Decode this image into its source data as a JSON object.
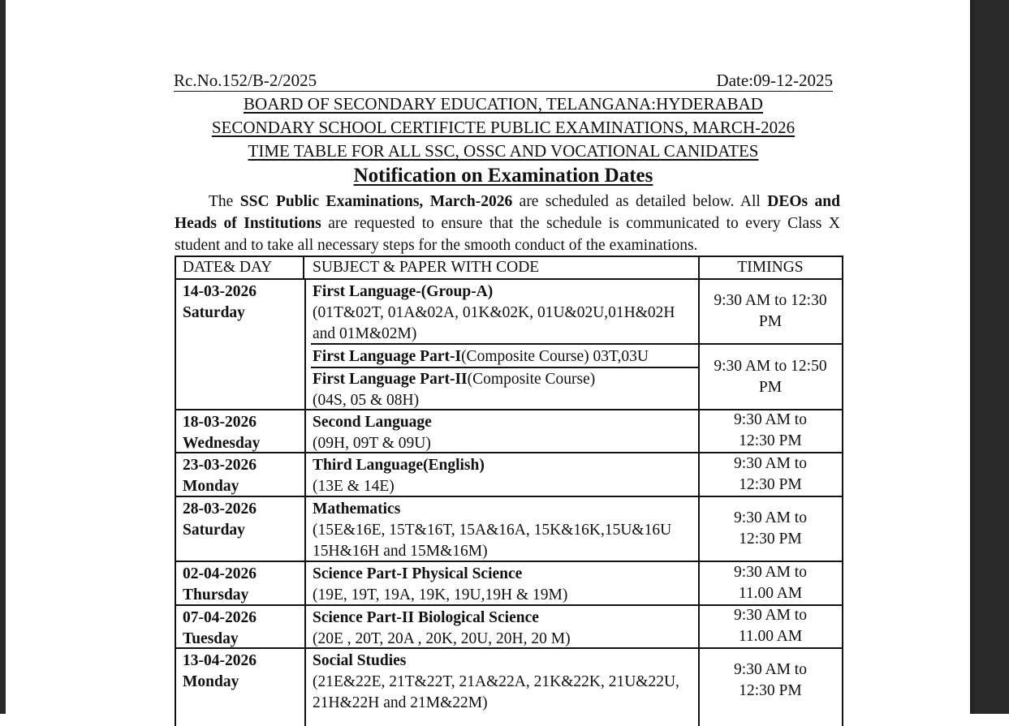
{
  "viewer": {
    "background": "#2a2a2a"
  },
  "document": {
    "ref_no": "Rc.No.152/B-2/2025",
    "date": "Date:09-12-2025",
    "titles": [
      "BOARD OF SECONDARY EDUCATION, TELANGANA:HYDERABAD",
      "SECONDARY SCHOOL CERTIFICTE PUBLIC EXAMINATIONS, MARCH-2026",
      "TIME TABLE FOR ALL SSC, OSSC AND VOCATIONAL CANIDATES"
    ],
    "heading": "Notification on Examination Dates",
    "intro": {
      "t1": "The ",
      "b1": "SSC Public Examinations, March-2026",
      "t2": " are scheduled as detailed below. All ",
      "b2": "DEOs and Heads of Institutions",
      "t3": " are requested to ensure that the schedule is communicated to every Class X student and to take all necessary steps for the smooth conduct of the examinations."
    },
    "table": {
      "headers": [
        "DATE& DAY",
        "SUBJECT & PAPER WITH CODE",
        "TIMINGS"
      ],
      "rows": [
        {
          "date": "14-03-2026",
          "day": "Saturday",
          "subject": "First Language-(Group-A)",
          "codes": "(01T&02T, 01A&02A, 01K&02K, 01U&02U,01H&02H and 01M&02M)",
          "timing": "9:30 AM to 12:30 PM"
        },
        {
          "subject": "First Language Part-I",
          "subject_suffix": "(Composite Course) 03T,03U",
          "subject2": "First Language Part-II",
          "subject2_suffix": "(Composite Course)",
          "codes": "(04S, 05 & 08H)",
          "timing": "9:30 AM to 12:50 PM"
        },
        {
          "date": "18-03-2026",
          "day": "Wednesday",
          "subject": "Second Language",
          "codes": "(09H, 09T & 09U)",
          "timing": "9:30 AM to 12:30 PM"
        },
        {
          "date": "23-03-2026",
          "day": "Monday",
          "subject": "Third Language(English)",
          "codes": "(13E & 14E)",
          "timing": "9:30 AM to 12:30 PM"
        },
        {
          "date": "28-03-2026",
          "day": "Saturday",
          "subject": "Mathematics",
          "codes": "(15E&16E, 15T&16T, 15A&16A, 15K&16K,15U&16U 15H&16H and 15M&16M)",
          "timing": "9:30 AM to 12:30 PM"
        },
        {
          "date": "02-04-2026",
          "day": "Thursday",
          "subject": "Science Part-I Physical Science",
          "codes": "(19E, 19T, 19A, 19K, 19U,19H & 19M)",
          "timing": "9:30 AM to 11.00 AM"
        },
        {
          "date": "07-04-2026",
          "day": "Tuesday",
          "subject": "Science Part-II Biological Science",
          "codes": "(20E , 20T, 20A , 20K, 20U, 20H, 20 M)",
          "timing": "9:30 AM to 11.00 AM"
        },
        {
          "date": "13-04-2026",
          "day": "Monday",
          "subject": "Social Studies",
          "codes": "(21E&22E, 21T&22T, 21A&22A, 21K&22K, 21U&22U, 21H&22H and 21M&22M)",
          "timing": "9:30 AM to 12:30 PM"
        }
      ]
    }
  }
}
